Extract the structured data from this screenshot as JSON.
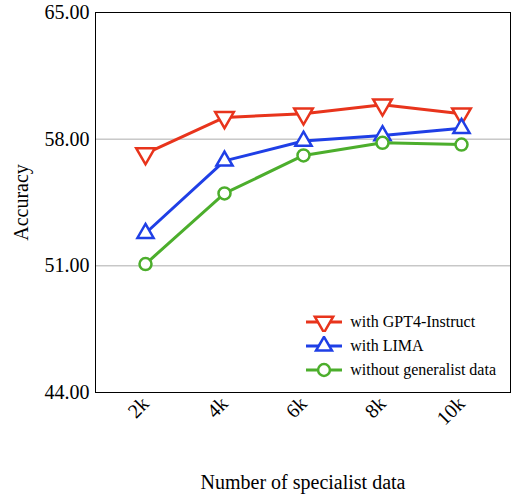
{
  "chart_data": {
    "type": "line",
    "x_label": "Number of specialist data",
    "y_label": "Accuracy",
    "categories": [
      "2k",
      "4k",
      "6k",
      "8k",
      "10k"
    ],
    "series": [
      {
        "name": "with GPT4-Instruct",
        "color": "#e8341c",
        "marker": "triangle-down",
        "values": [
          57.2,
          59.2,
          59.4,
          59.9,
          59.4
        ]
      },
      {
        "name": "with LIMA",
        "color": "#1f3fe6",
        "marker": "triangle",
        "values": [
          52.8,
          56.8,
          57.9,
          58.2,
          58.6
        ]
      },
      {
        "name": "without generalist data",
        "color": "#4cae2c",
        "marker": "circle",
        "values": [
          51.1,
          55.0,
          57.1,
          57.8,
          57.7
        ]
      }
    ],
    "ylim": [
      44,
      65
    ],
    "yticks": [
      {
        "value": 44,
        "label": "44.00"
      },
      {
        "value": 51,
        "label": "51.00"
      },
      {
        "value": 58,
        "label": "58.00"
      },
      {
        "value": 65,
        "label": "65.00"
      }
    ],
    "grid": true,
    "legend": "lower right"
  }
}
